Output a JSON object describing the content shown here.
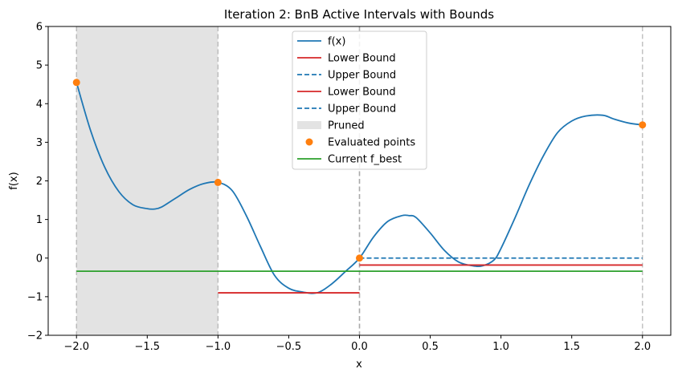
{
  "chart_data": {
    "type": "line",
    "title": "Iteration 2: BnB Active Intervals with Bounds",
    "xlabel": "x",
    "ylabel": "f(x)",
    "xlim": [
      -2.2,
      2.2
    ],
    "ylim": [
      -2,
      6
    ],
    "xticks": [
      -2.0,
      -1.5,
      -1.0,
      -0.5,
      0.0,
      0.5,
      1.0,
      1.5,
      2.0
    ],
    "xtick_labels": [
      "−2.0",
      "−1.5",
      "−1.0",
      "−0.5",
      "0.0",
      "0.5",
      "1.0",
      "1.5",
      "2.0"
    ],
    "yticks": [
      -2,
      -1,
      0,
      1,
      2,
      3,
      4,
      5,
      6
    ],
    "ytick_labels": [
      "−2",
      "−1",
      "0",
      "1",
      "2",
      "3",
      "4",
      "5",
      "6"
    ],
    "curve": {
      "name": "f(x)",
      "color": "#1f77b4",
      "x": [
        -2.0,
        -1.9,
        -1.8,
        -1.7,
        -1.6,
        -1.5,
        -1.45,
        -1.4,
        -1.3,
        -1.2,
        -1.1,
        -1.0,
        -0.9,
        -0.8,
        -0.7,
        -0.6,
        -0.5,
        -0.4,
        -0.3,
        -0.2,
        -0.1,
        0.0,
        0.1,
        0.2,
        0.3,
        0.35,
        0.4,
        0.5,
        0.6,
        0.7,
        0.8,
        0.87,
        0.95,
        1.0,
        1.1,
        1.2,
        1.3,
        1.4,
        1.5,
        1.6,
        1.72,
        1.8,
        1.9,
        2.0
      ],
      "y": [
        4.55,
        3.3,
        2.35,
        1.72,
        1.38,
        1.28,
        1.27,
        1.32,
        1.55,
        1.78,
        1.93,
        1.96,
        1.75,
        1.1,
        0.3,
        -0.45,
        -0.78,
        -0.88,
        -0.9,
        -0.68,
        -0.35,
        0.0,
        0.55,
        0.95,
        1.1,
        1.1,
        1.05,
        0.65,
        0.2,
        -0.1,
        -0.2,
        -0.2,
        -0.05,
        0.25,
        1.05,
        1.9,
        2.65,
        3.25,
        3.55,
        3.68,
        3.7,
        3.6,
        3.5,
        3.45
      ]
    },
    "bound_segments": [
      {
        "name": "Lower Bound",
        "x": [
          -1.0,
          0.0
        ],
        "y": -0.9,
        "color": "#d62728",
        "style": "solid"
      },
      {
        "name": "Upper Bound",
        "x": [
          0.0,
          2.0
        ],
        "y": 0.0,
        "color": "#1f77b4",
        "style": "dashed"
      },
      {
        "name": "Lower Bound",
        "x": [
          0.0,
          2.0
        ],
        "y": -0.18,
        "color": "#d62728",
        "style": "solid"
      }
    ],
    "pruned": {
      "name": "Pruned",
      "x": [
        -2.0,
        -1.0
      ],
      "color": "#e3e3e3"
    },
    "vlines": [
      -2.0,
      -1.0,
      0.0,
      0.0,
      2.0
    ],
    "evaluated_points": {
      "name": "Evaluated points",
      "color": "#ff7f0e",
      "x": [
        -2.0,
        -1.0,
        0.0,
        2.0
      ],
      "y": [
        4.55,
        1.96,
        0.0,
        3.45
      ]
    },
    "f_best": {
      "name": "Current f_best",
      "color": "#2ca02c",
      "x": [
        -2.0,
        2.0
      ],
      "y": -0.34
    },
    "legend": {
      "placement": "upper center",
      "entries": [
        {
          "label": "f(x)",
          "kind": "line",
          "color": "#1f77b4",
          "dash": "solid"
        },
        {
          "label": "Lower Bound",
          "kind": "line",
          "color": "#d62728",
          "dash": "solid"
        },
        {
          "label": "Upper Bound",
          "kind": "line",
          "color": "#1f77b4",
          "dash": "dashed"
        },
        {
          "label": "Lower Bound",
          "kind": "line",
          "color": "#d62728",
          "dash": "solid"
        },
        {
          "label": "Upper Bound",
          "kind": "line",
          "color": "#1f77b4",
          "dash": "dashed"
        },
        {
          "label": "Pruned",
          "kind": "patch",
          "color": "#e3e3e3",
          "dash": "solid"
        },
        {
          "label": "Evaluated points",
          "kind": "marker",
          "color": "#ff7f0e",
          "dash": "solid"
        },
        {
          "label": "Current f_best",
          "kind": "line",
          "color": "#2ca02c",
          "dash": "solid"
        }
      ]
    }
  }
}
